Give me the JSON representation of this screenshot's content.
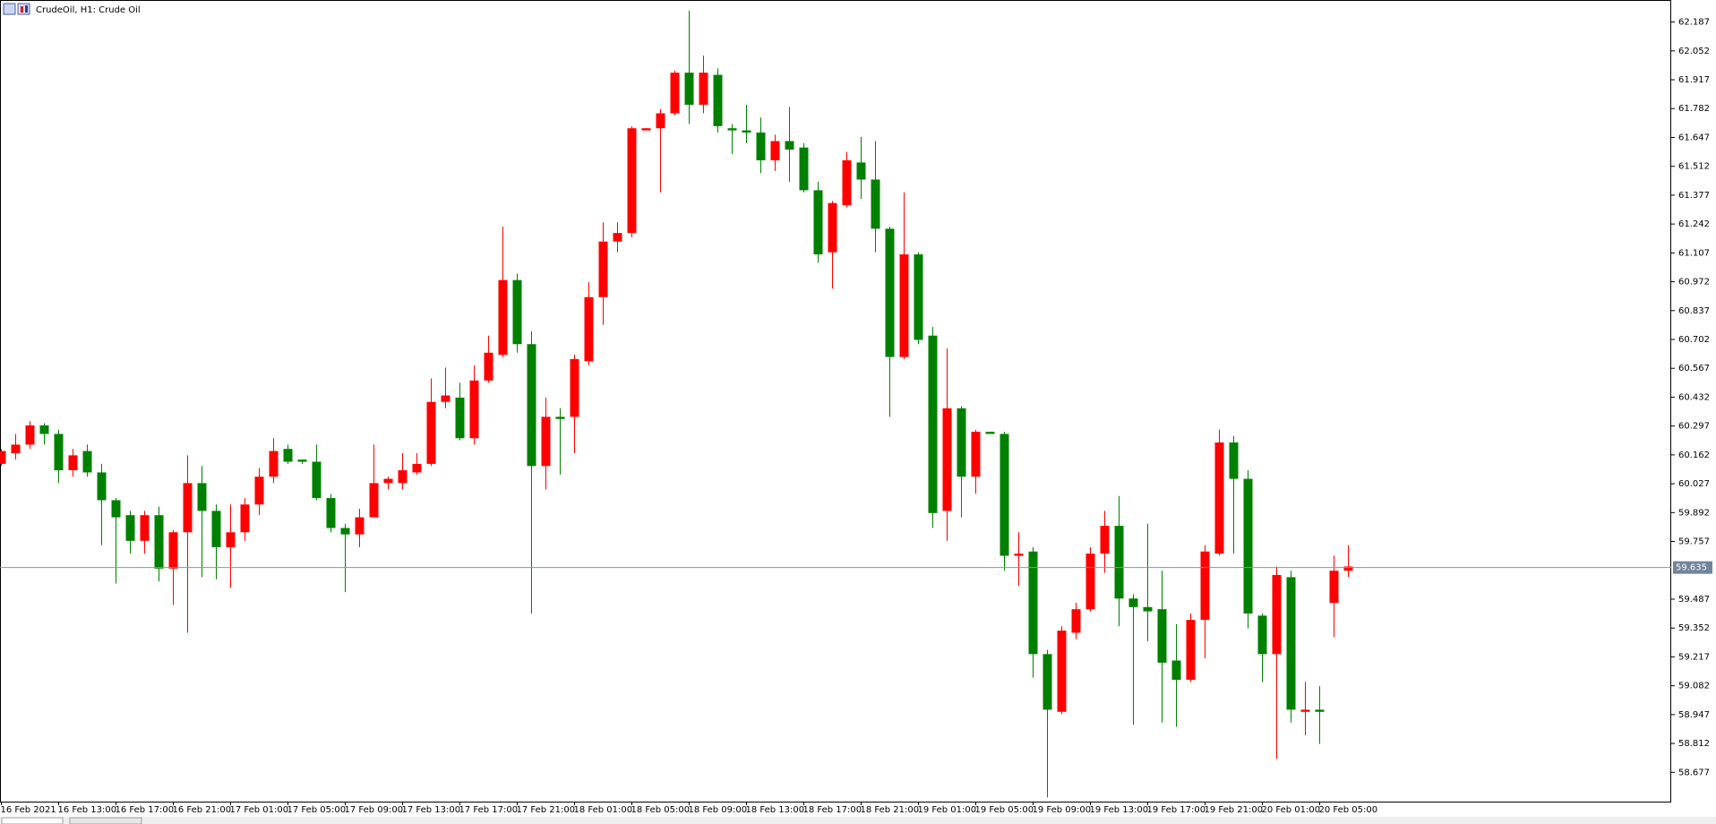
{
  "chart_data": {
    "type": "candlestick",
    "title": "CrudeOil, H1:  Crude Oil",
    "categories": [
      "16 Feb 2021",
      null,
      null,
      null,
      "16 Feb 13:00",
      null,
      null,
      null,
      "16 Feb 17:00",
      null,
      null,
      null,
      "16 Feb 21:00",
      null,
      null,
      null,
      "17 Feb 01:00",
      null,
      null,
      null,
      "17 Feb 05:00",
      null,
      null,
      null,
      "17 Feb 09:00",
      null,
      null,
      null,
      "17 Feb 13:00",
      null,
      null,
      null,
      "17 Feb 17:00",
      null,
      null,
      null,
      "17 Feb 21:00",
      null,
      null,
      null,
      "18 Feb 01:00",
      null,
      null,
      null,
      "18 Feb 05:00",
      null,
      null,
      null,
      "18 Feb 09:00",
      null,
      null,
      null,
      "18 Feb 13:00",
      null,
      null,
      null,
      "18 Feb 17:00",
      null,
      null,
      null,
      "18 Feb 21:00",
      null,
      null,
      null,
      "19 Feb 01:00",
      null,
      null,
      null,
      "19 Feb 05:00",
      null,
      null,
      null,
      "19 Feb 09:00",
      null,
      null,
      null,
      "19 Feb 13:00",
      null,
      null,
      null,
      "19 Feb 17:00",
      null,
      null,
      null,
      "19 Feb 21:00",
      null,
      null,
      null,
      "20 Feb 01:00",
      null,
      null,
      null,
      "20 Feb 05:00",
      null,
      null
    ],
    "open": [
      60.12,
      60.17,
      60.21,
      60.3,
      60.26,
      60.09,
      60.18,
      60.08,
      59.95,
      59.88,
      59.76,
      59.88,
      59.63,
      59.8,
      60.03,
      59.9,
      59.73,
      59.8,
      59.93,
      60.06,
      60.19,
      60.14,
      60.13,
      59.96,
      59.82,
      59.79,
      59.87,
      60.03,
      60.03,
      60.08,
      60.12,
      60.41,
      60.43,
      60.24,
      60.51,
      60.63,
      60.98,
      60.68,
      60.11,
      60.34,
      60.34,
      60.6,
      60.9,
      61.16,
      61.2,
      61.68,
      61.69,
      61.76,
      61.95,
      61.8,
      61.94,
      61.69,
      61.68,
      61.67,
      61.54,
      61.63,
      61.6,
      61.4,
      61.11,
      61.33,
      61.53,
      61.45,
      61.22,
      60.62,
      61.1,
      60.72,
      59.9,
      60.38,
      60.06,
      60.27,
      60.26,
      59.69,
      59.71,
      59.23,
      58.96,
      59.33,
      59.44,
      59.7,
      59.83,
      59.49,
      59.45,
      59.44,
      59.2,
      59.11,
      59.39,
      59.7,
      60.22,
      60.05,
      59.41,
      59.23,
      59.59,
      58.96,
      58.97,
      59.47,
      59.62
    ],
    "high": [
      60.19,
      60.26,
      60.32,
      60.31,
      60.28,
      60.19,
      60.21,
      60.12,
      59.96,
      59.9,
      59.9,
      59.92,
      59.81,
      60.16,
      60.11,
      59.93,
      59.93,
      59.96,
      60.1,
      60.24,
      60.21,
      60.14,
      60.21,
      59.98,
      59.84,
      59.91,
      60.21,
      60.06,
      60.17,
      60.17,
      60.52,
      60.57,
      60.5,
      60.58,
      60.72,
      61.23,
      61.01,
      60.74,
      60.43,
      60.38,
      60.63,
      60.97,
      61.25,
      61.25,
      61.7,
      61.69,
      61.78,
      61.96,
      62.24,
      62.03,
      61.97,
      61.71,
      61.8,
      61.74,
      61.66,
      61.79,
      61.62,
      61.44,
      61.35,
      61.58,
      61.65,
      61.63,
      61.23,
      61.39,
      61.11,
      60.76,
      60.66,
      60.39,
      60.28,
      60.27,
      60.27,
      59.8,
      59.73,
      59.25,
      59.36,
      59.47,
      59.73,
      59.9,
      59.97,
      59.51,
      59.84,
      59.62,
      59.37,
      59.42,
      59.74,
      60.28,
      60.25,
      60.09,
      59.42,
      59.64,
      59.62,
      59.1,
      59.08,
      59.69,
      59.74
    ],
    "low": [
      60.11,
      60.14,
      60.19,
      60.21,
      60.03,
      60.06,
      60.06,
      59.74,
      59.56,
      59.7,
      59.7,
      59.57,
      59.46,
      59.33,
      59.59,
      59.58,
      59.54,
      59.76,
      59.88,
      60.03,
      60.12,
      60.12,
      59.95,
      59.8,
      59.52,
      59.73,
      59.87,
      60.0,
      60.0,
      60.07,
      60.11,
      60.38,
      60.23,
      60.21,
      60.5,
      60.62,
      60.64,
      59.42,
      60.0,
      60.07,
      60.17,
      60.58,
      60.77,
      61.11,
      61.18,
      61.68,
      61.39,
      61.75,
      61.71,
      61.76,
      61.67,
      61.57,
      61.62,
      61.48,
      61.49,
      61.44,
      61.39,
      61.06,
      60.94,
      61.32,
      61.36,
      61.11,
      60.34,
      60.61,
      60.68,
      59.82,
      59.76,
      59.87,
      59.98,
      60.26,
      59.62,
      59.55,
      59.12,
      58.56,
      58.95,
      59.3,
      59.43,
      59.61,
      59.36,
      58.9,
      59.29,
      58.91,
      58.89,
      59.1,
      59.21,
      59.69,
      59.7,
      59.35,
      59.1,
      58.74,
      58.91,
      58.85,
      58.81,
      59.31,
      59.59
    ],
    "close": [
      60.18,
      60.21,
      60.3,
      60.26,
      60.09,
      60.16,
      60.08,
      59.95,
      59.87,
      59.76,
      59.88,
      59.63,
      59.8,
      60.03,
      59.9,
      59.73,
      59.8,
      59.93,
      60.06,
      60.18,
      60.13,
      60.13,
      59.96,
      59.82,
      59.79,
      59.87,
      60.03,
      60.05,
      60.09,
      60.12,
      60.41,
      60.44,
      60.24,
      60.51,
      60.64,
      60.98,
      60.68,
      60.11,
      60.34,
      60.33,
      60.61,
      60.9,
      61.16,
      61.2,
      61.69,
      61.69,
      61.76,
      61.95,
      61.8,
      61.95,
      61.7,
      61.68,
      61.67,
      61.54,
      61.63,
      61.59,
      61.4,
      61.1,
      61.34,
      61.54,
      61.45,
      61.22,
      60.62,
      61.1,
      60.7,
      59.89,
      60.38,
      60.06,
      60.27,
      60.26,
      59.69,
      59.7,
      59.23,
      58.97,
      59.34,
      59.44,
      59.7,
      59.83,
      59.49,
      59.45,
      59.43,
      59.19,
      59.11,
      59.39,
      59.71,
      60.22,
      60.05,
      59.42,
      59.23,
      59.6,
      58.97,
      58.97,
      58.96,
      59.62,
      59.64
    ],
    "up_color": "#ff0000",
    "down_color": "#008000",
    "current_price": 59.635,
    "ylim": [
      58.54,
      62.29
    ],
    "yticks": [
      62.187,
      62.052,
      61.917,
      61.782,
      61.647,
      61.512,
      61.377,
      61.242,
      61.107,
      60.972,
      60.837,
      60.702,
      60.567,
      60.432,
      60.297,
      60.162,
      60.027,
      59.892,
      59.757,
      59.487,
      59.352,
      59.217,
      59.082,
      58.947,
      58.812,
      58.677
    ]
  }
}
